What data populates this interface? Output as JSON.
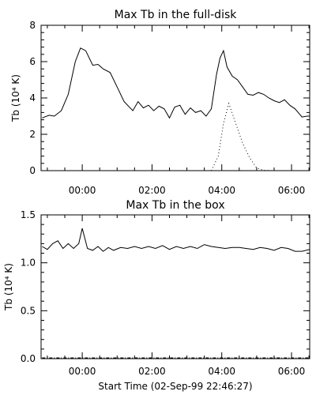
{
  "chart_data": [
    {
      "type": "line",
      "title": "Max Tb in the full-disk",
      "ylabel": "Tb (10⁴ K)",
      "xlabel": "",
      "xlim": [
        -1.18,
        6.52
      ],
      "ylim": [
        0,
        8
      ],
      "yticks": [
        0,
        2,
        4,
        6,
        8
      ],
      "ytick_labels": [
        "0",
        "2",
        "4",
        "6",
        "8"
      ],
      "xticks": [
        0,
        2,
        4,
        6
      ],
      "xtick_labels": [
        "00:00",
        "02:00",
        "04:00",
        "06:00"
      ],
      "series": [
        {
          "style": "solid",
          "x": [
            -1.15,
            -0.95,
            -0.8,
            -0.6,
            -0.4,
            -0.2,
            -0.05,
            0.1,
            0.3,
            0.45,
            0.6,
            0.8,
            1.0,
            1.2,
            1.45,
            1.6,
            1.75,
            1.9,
            2.05,
            2.2,
            2.35,
            2.5,
            2.65,
            2.8,
            2.95,
            3.1,
            3.25,
            3.4,
            3.55,
            3.7,
            3.85,
            3.95,
            4.05,
            4.15,
            4.3,
            4.45,
            4.6,
            4.75,
            4.9,
            5.05,
            5.2,
            5.35,
            5.5,
            5.65,
            5.8,
            5.95,
            6.1,
            6.3,
            6.45,
            6.52
          ],
          "y": [
            2.9,
            3.05,
            3.0,
            3.3,
            4.2,
            6.0,
            6.75,
            6.6,
            5.8,
            5.85,
            5.6,
            5.4,
            4.6,
            3.8,
            3.3,
            3.8,
            3.45,
            3.6,
            3.3,
            3.55,
            3.4,
            2.9,
            3.5,
            3.6,
            3.1,
            3.45,
            3.2,
            3.3,
            3.0,
            3.4,
            5.3,
            6.2,
            6.6,
            5.7,
            5.2,
            5.0,
            4.6,
            4.2,
            4.15,
            4.3,
            4.2,
            4.0,
            3.85,
            3.75,
            3.9,
            3.6,
            3.4,
            2.95,
            3.0,
            3.0
          ]
        },
        {
          "style": "dotted",
          "x": [
            3.7,
            3.9,
            4.05,
            4.2,
            4.4,
            4.6,
            4.8,
            5.0,
            5.2,
            5.45
          ],
          "y": [
            0.0,
            0.8,
            2.6,
            3.7,
            2.6,
            1.5,
            0.7,
            0.15,
            0.02,
            0.0
          ]
        }
      ]
    },
    {
      "type": "line",
      "title": "Max Tb in the box",
      "ylabel": "Tb (10⁴ K)",
      "xlabel": "Start Time (02-Sep-99 22:46:27)",
      "xlim": [
        -1.18,
        6.52
      ],
      "ylim": [
        0,
        1.5
      ],
      "yticks": [
        0,
        0.5,
        1.0,
        1.5
      ],
      "ytick_labels": [
        "0.0",
        "0.5",
        "1.0",
        "1.5"
      ],
      "xticks": [
        0,
        2,
        4,
        6
      ],
      "xtick_labels": [
        "00:00",
        "02:00",
        "04:00",
        "06:00"
      ],
      "series": [
        {
          "style": "solid",
          "x": [
            -1.15,
            -1.0,
            -0.85,
            -0.7,
            -0.55,
            -0.4,
            -0.25,
            -0.1,
            0.0,
            0.15,
            0.3,
            0.45,
            0.6,
            0.75,
            0.9,
            1.1,
            1.3,
            1.5,
            1.7,
            1.9,
            2.1,
            2.3,
            2.5,
            2.7,
            2.9,
            3.1,
            3.3,
            3.5,
            3.7,
            3.9,
            4.1,
            4.3,
            4.5,
            4.7,
            4.9,
            5.1,
            5.3,
            5.5,
            5.7,
            5.9,
            6.1,
            6.3,
            6.52
          ],
          "y": [
            1.17,
            1.14,
            1.2,
            1.23,
            1.15,
            1.2,
            1.15,
            1.2,
            1.36,
            1.15,
            1.13,
            1.17,
            1.12,
            1.16,
            1.13,
            1.16,
            1.15,
            1.17,
            1.15,
            1.17,
            1.15,
            1.18,
            1.14,
            1.17,
            1.15,
            1.17,
            1.15,
            1.19,
            1.17,
            1.16,
            1.15,
            1.16,
            1.16,
            1.15,
            1.14,
            1.16,
            1.15,
            1.13,
            1.16,
            1.15,
            1.12,
            1.12,
            1.14
          ]
        },
        {
          "style": "dash-dot",
          "x": [
            -1.15,
            6.52
          ],
          "y": [
            0.008,
            0.008
          ]
        }
      ]
    }
  ]
}
